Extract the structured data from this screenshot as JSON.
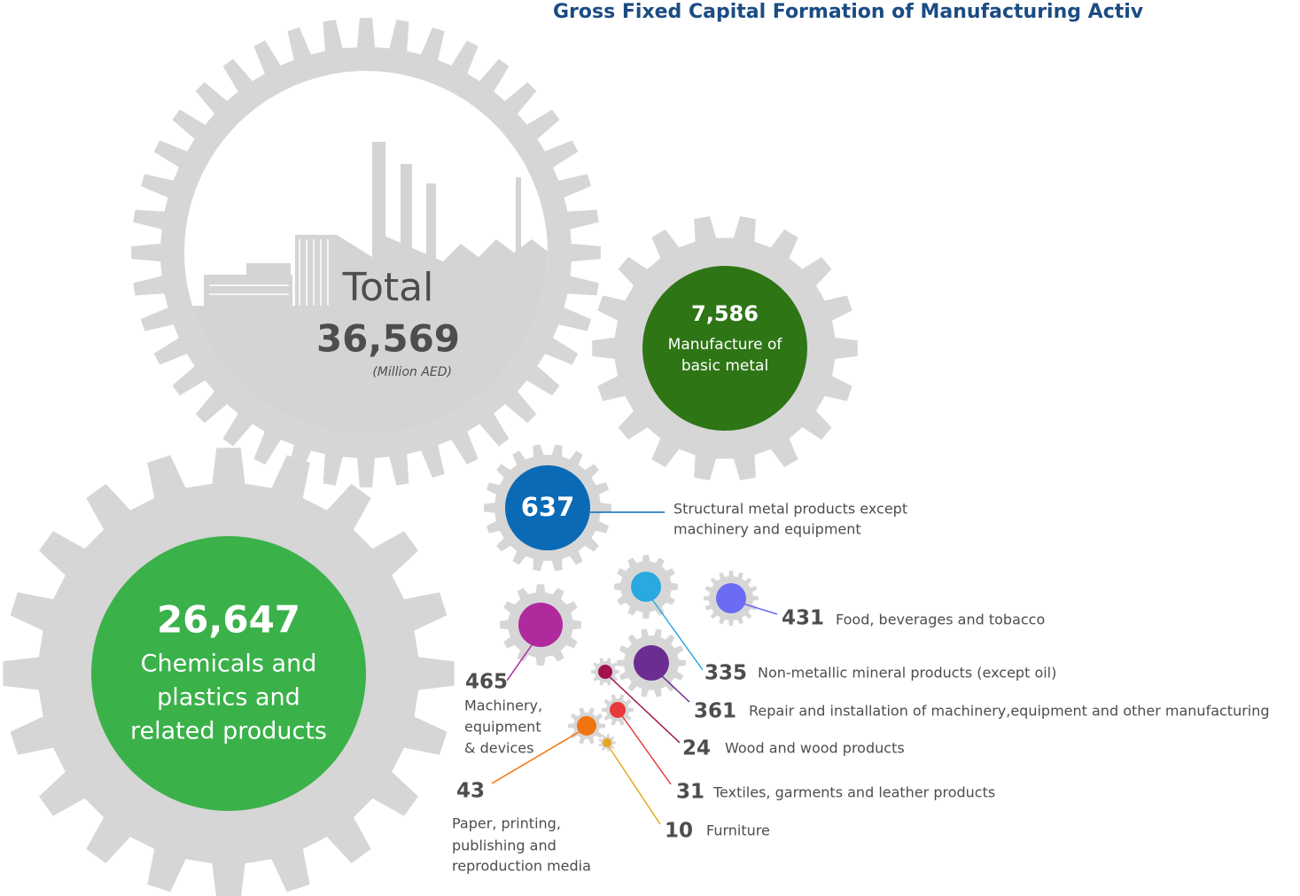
{
  "title": "Gross Fixed Capital Formation of Manufacturing Activ",
  "total": {
    "label": "Total",
    "value": "36,569",
    "unit": "(Million AED)"
  },
  "segments": [
    {
      "value": "26,647",
      "label": [
        "Chemicals and",
        "plastics and",
        "related products"
      ],
      "color": "#3bb14a"
    },
    {
      "value": "7,586",
      "label": [
        "Manufacture of",
        "basic metal"
      ],
      "color": "#2e7516"
    },
    {
      "value": "637",
      "label": [
        "Structural metal products except",
        "machinery and equipment"
      ],
      "color": "#0a6ab5"
    },
    {
      "value": "465",
      "label": [
        "Machinery,",
        "equipment",
        "& devices"
      ],
      "color": "#b02a9e"
    },
    {
      "value": "431",
      "label": [
        "Food, beverages and tobacco"
      ],
      "color": "#6b6bf5"
    },
    {
      "value": "335",
      "label": [
        "Non-metallic mineral products (except oil)"
      ],
      "color": "#29a9e0"
    },
    {
      "value": "361",
      "label": [
        "Repair and installation of machinery,equipment and other manufacturing"
      ],
      "color": "#6b2d91"
    },
    {
      "value": "24",
      "label": [
        "Wood and wood products"
      ],
      "color": "#a1124f"
    },
    {
      "value": "31",
      "label": [
        "Textiles, garments and leather products"
      ],
      "color": "#e8393a"
    },
    {
      "value": "43",
      "label": [
        "Paper, printing,",
        "publishing and",
        "reproduction media"
      ],
      "color": "#f07410"
    },
    {
      "value": "10",
      "label": [
        "Furniture"
      ],
      "color": "#e8a521"
    }
  ]
}
